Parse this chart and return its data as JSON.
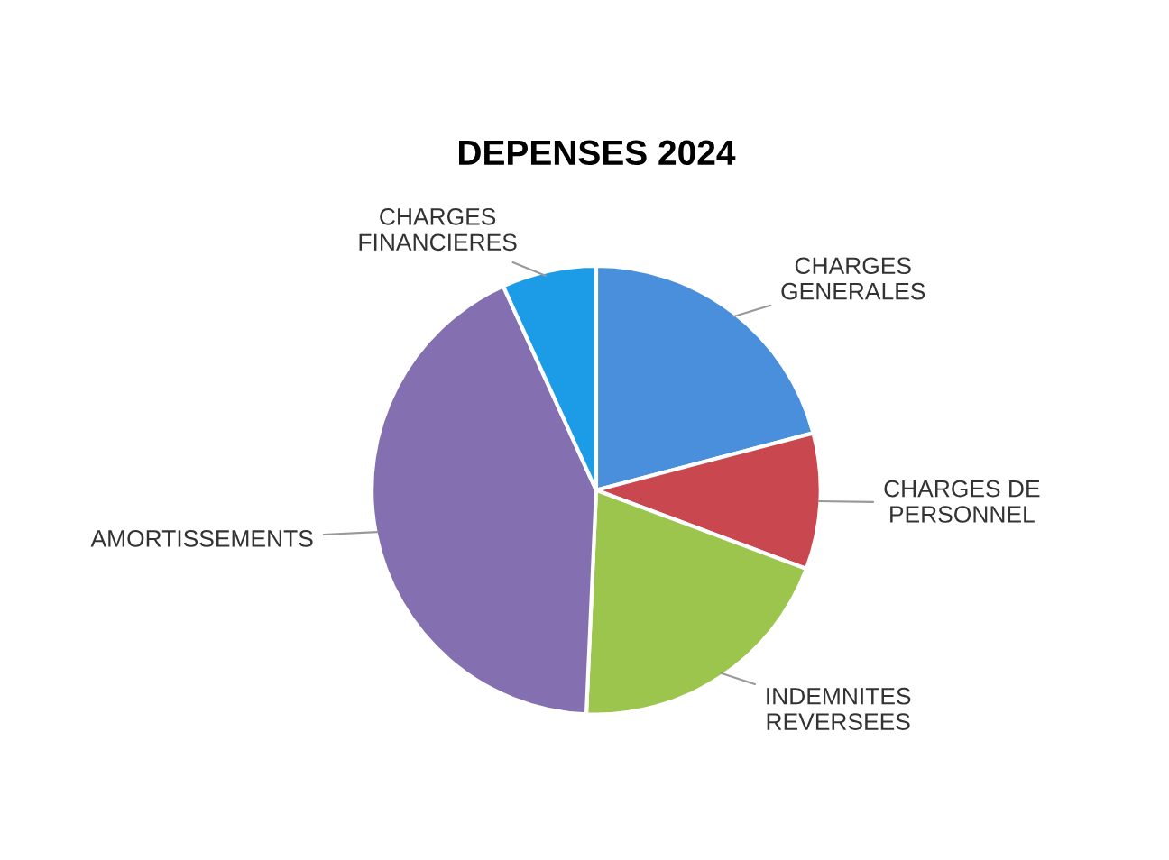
{
  "chart_data": {
    "type": "pie",
    "title": "DEPENSES 2024",
    "categories": [
      "CHARGES\nGENERALES",
      "CHARGES DE\nPERSONNEL",
      "INDEMNITES\nREVERSEES",
      "AMORTISSEMENTS",
      "CHARGES\nFINANCIERES"
    ],
    "values": [
      20.9,
      9.8,
      20.0,
      42.5,
      6.8
    ],
    "colors": [
      "#4a8fdc",
      "#c9474f",
      "#9cc54e",
      "#8470b0",
      "#1c9be6"
    ],
    "legend": false
  }
}
